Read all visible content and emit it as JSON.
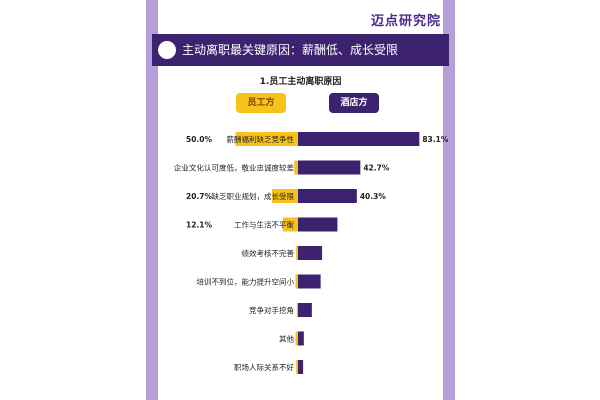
{
  "logo": {
    "text": "迈点研究院"
  },
  "header": {
    "title": "主动离职最关键原因：薪酬低、成长受限"
  },
  "colors": {
    "employee": "#f7c21b",
    "hotel": "#3d2270",
    "frame": "#b59fd8"
  },
  "chart_data": {
    "type": "bar",
    "orientation": "horizontal-diverging",
    "title": "1.员工主动离职原因",
    "categories": [
      "薪酬福利缺乏竞争性",
      "企业文化认可度低，敬业忠诚度较差",
      "缺乏职业规划，成长受限",
      "工作与生活不平衡",
      "绩效考核不完善",
      "培训不到位，能力提升空间小",
      "竞争对手挖角",
      "其他",
      "职场人际关系不好"
    ],
    "series": [
      {
        "name": "员工方",
        "values": [
          50.0,
          3.0,
          20.7,
          12.1,
          1.5,
          2.0,
          1.0,
          2.0,
          1.5
        ],
        "labels": [
          "50.0%",
          "",
          "20.7%",
          "12.1%",
          "",
          "",
          "",
          "",
          ""
        ]
      },
      {
        "name": "酒店方",
        "values": [
          83.1,
          42.7,
          40.3,
          27.0,
          16.5,
          15.5,
          9.5,
          4.0,
          3.5
        ],
        "labels": [
          "83.1%",
          "42.7%",
          "40.3%",
          "",
          "",
          "",
          "",
          "",
          ""
        ]
      }
    ]
  }
}
